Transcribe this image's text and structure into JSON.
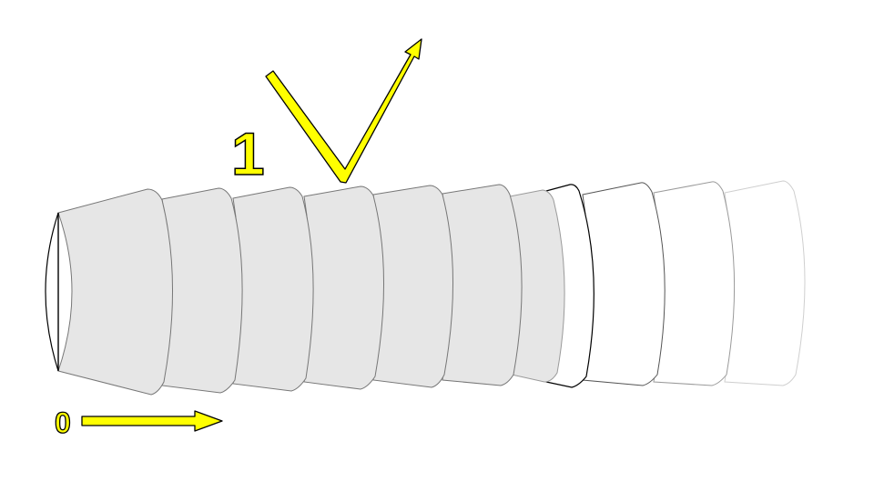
{
  "diagram": {
    "labels": {
      "zero": "0",
      "one": "1"
    },
    "colors": {
      "accent_yellow": "#ffff00",
      "outline_black": "#000000",
      "segment_fill": "#e6e6e6",
      "background": "#ffffff"
    }
  }
}
